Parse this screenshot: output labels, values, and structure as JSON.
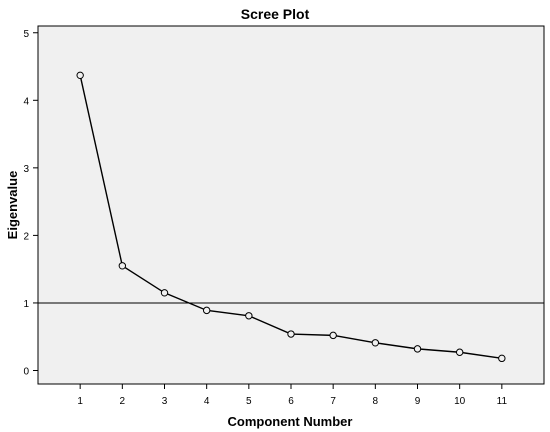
{
  "chart_data": {
    "type": "line",
    "title": "Scree Plot",
    "xlabel": "Component Number",
    "ylabel": "Eigenvalue",
    "x": [
      1,
      2,
      3,
      4,
      5,
      6,
      7,
      8,
      9,
      10,
      11
    ],
    "series": [
      {
        "values": [
          4.37,
          1.55,
          1.15,
          0.89,
          0.81,
          0.54,
          0.52,
          0.41,
          0.32,
          0.27,
          0.18
        ]
      }
    ],
    "xticks": [
      "1",
      "2",
      "3",
      "4",
      "5",
      "6",
      "7",
      "8",
      "9",
      "10",
      "11"
    ],
    "yticks": [
      "0",
      "1",
      "2",
      "3",
      "4",
      "5"
    ],
    "xlim": [
      0,
      12
    ],
    "ylim": [
      -0.2,
      5.1
    ],
    "reference_line_y": 1,
    "grid": false,
    "legend": "none",
    "markers": "hollow-circle",
    "colors": {
      "plot_background": "#f0f0f0",
      "line": "#000000",
      "reference_line": "#000000",
      "frame": "#000000"
    }
  }
}
